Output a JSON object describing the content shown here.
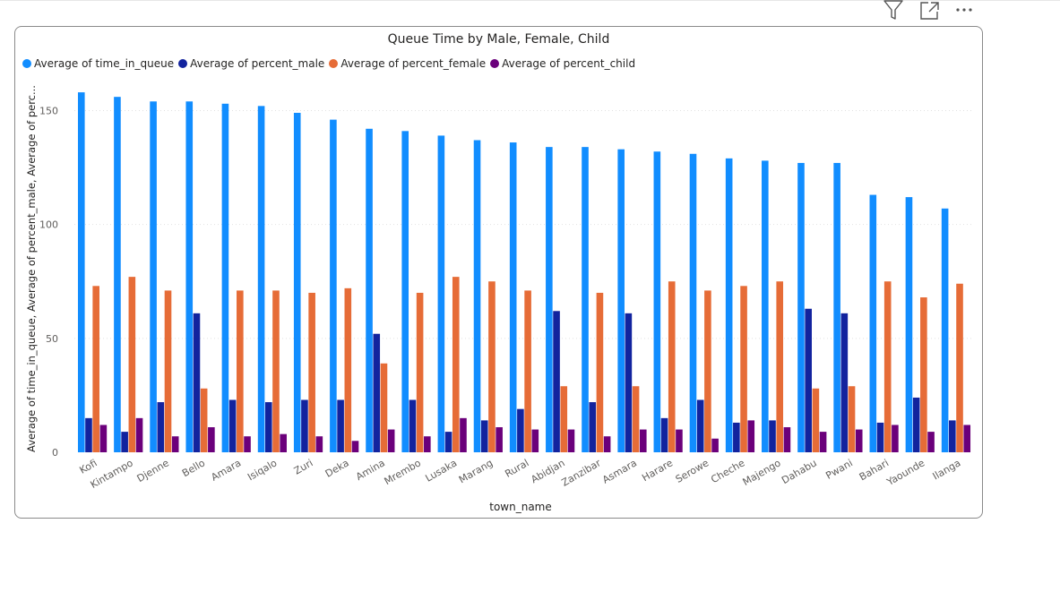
{
  "toolbar": {
    "filter_icon": "filter-icon",
    "focus_icon": "focus-mode-icon",
    "more_icon": "more-options-icon"
  },
  "colors": {
    "time_in_queue": "#118DFF",
    "percent_male": "#12239E",
    "percent_female": "#E66C37",
    "percent_child": "#6B007B",
    "grid": "#e1e1e1",
    "text": "#252423",
    "axis_text": "#605e5c"
  },
  "chart_data": {
    "type": "bar",
    "title": "Queue Time by Male, Female, Child",
    "xlabel": "town_name",
    "ylabel": "Average of time_in_queue, Average of percent_male, Average of perc...",
    "ylim": [
      0,
      160
    ],
    "yticks": [
      0,
      50,
      100,
      150
    ],
    "grid": true,
    "legend_position": "top-left",
    "categories": [
      "Kofi",
      "Kintampo",
      "Djenne",
      "Bello",
      "Amara",
      "Isiqalo",
      "Zuri",
      "Deka",
      "Amina",
      "Mrembo",
      "Lusaka",
      "Marang",
      "Rural",
      "Abidjan",
      "Zanzibar",
      "Asmara",
      "Harare",
      "Serowe",
      "Cheche",
      "Majengo",
      "Dahabu",
      "Pwani",
      "Bahari",
      "Yaounde",
      "Ilanga"
    ],
    "series": [
      {
        "name": "Average of time_in_queue",
        "color": "#118DFF",
        "values": [
          158,
          156,
          154,
          154,
          153,
          152,
          149,
          146,
          142,
          141,
          139,
          137,
          136,
          134,
          134,
          133,
          132,
          131,
          129,
          128,
          127,
          127,
          113,
          112,
          107
        ]
      },
      {
        "name": "Average of percent_male",
        "color": "#12239E",
        "values": [
          15,
          9,
          22,
          61,
          23,
          22,
          23,
          23,
          52,
          23,
          9,
          14,
          19,
          62,
          22,
          61,
          15,
          23,
          13,
          14,
          63,
          61,
          13,
          24,
          14
        ]
      },
      {
        "name": "Average of percent_female",
        "color": "#E66C37",
        "values": [
          73,
          77,
          71,
          28,
          71,
          71,
          70,
          72,
          39,
          70,
          77,
          75,
          71,
          29,
          70,
          29,
          75,
          71,
          73,
          75,
          28,
          29,
          75,
          68,
          74
        ]
      },
      {
        "name": "Average of percent_child",
        "color": "#6B007B",
        "values": [
          12,
          15,
          7,
          11,
          7,
          8,
          7,
          5,
          10,
          7,
          15,
          11,
          10,
          10,
          7,
          10,
          10,
          6,
          14,
          11,
          9,
          10,
          12,
          9,
          12
        ]
      }
    ]
  }
}
